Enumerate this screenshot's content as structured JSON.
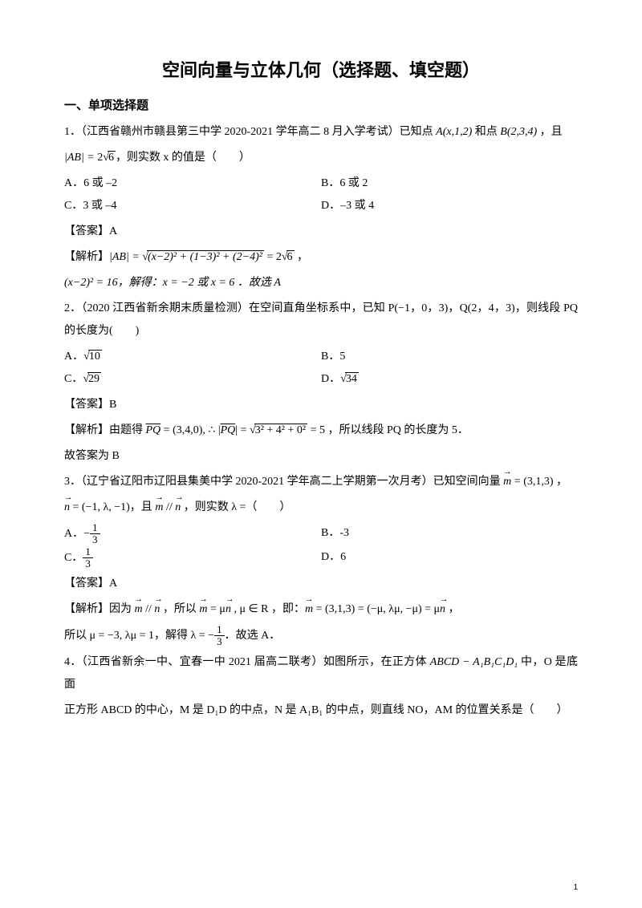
{
  "title": "空间向量与立体几何（选择题、填空题）",
  "section1": "一、单项选择题",
  "q1": {
    "stem_a": "1．（江西省赣州市赣县第三中学 2020-2021 学年高二 8 月入学考试）已知点 ",
    "stem_pointA": "A(x,1,2)",
    "stem_b": " 和点 ",
    "stem_pointB": "B(2,3,4)",
    "stem_c": " ，且",
    "stem_d_pre": "|AB| = ",
    "stem_d_rad": "6",
    "stem_d_coef": "2",
    "stem_e": "，则实数 x 的值是（　　）",
    "optA": "A．6 或 –2",
    "optB": "B．6 或 2",
    "optC": "C．3 或 –4",
    "optD": "D．–3 或 4",
    "ans": "【答案】A",
    "expl_a": "【解析】",
    "expl_b": "|AB| = ",
    "expl_rad": "(x−2)² + (1−3)² + (2−4)²",
    "expl_c": " = 2",
    "expl_rad2": "6",
    "expl_d": " ，",
    "expl_e": "(x−2)² = 16，解得：x = −2 或 x = 6 ．故选 A"
  },
  "q2": {
    "stem_a": "2．（2020 江西省新余期末质量检测）在空间直角坐标系中，已知 P(−1，0，3)，Q(2，4，3)，则线段 PQ 的长度为(　　)",
    "optA_pre": "A．",
    "optA_rad": "10",
    "optB": "B．5",
    "optC_pre": "C．",
    "optC_rad": "29",
    "optD_pre": "D．",
    "optD_rad": "34",
    "ans": "【答案】B",
    "expl_a": "【解析】由题得 ",
    "expl_pq": "PQ",
    "expl_b": " = (3,4,0), ∴ ",
    "expl_abs_l": "|",
    "expl_abs_r": "|",
    "expl_c": " = ",
    "expl_rad": "3² + 4² + 0²",
    "expl_d": " = 5 ，所以线段 PQ 的长度为 5．",
    "expl_e": "故答案为 B"
  },
  "q3": {
    "stem_a": "3．（辽宁省辽阳市辽阳县集美中学 2020-2021 学年高二上学期第一次月考）已知空间向量 ",
    "stem_m": "m",
    "stem_b": " = (3,1,3) ，",
    "stem_n": "n",
    "stem_c": " = (−1, λ, −1)，且 ",
    "stem_d": " // ",
    "stem_e": " ，则实数 λ =（　　）",
    "optA_pre": "A．",
    "optA_neg": "−",
    "optA_num": "1",
    "optA_den": "3",
    "optB": "B．-3",
    "optC_pre": "C．",
    "optC_num": "1",
    "optC_den": "3",
    "optD": "D．6",
    "ans": "【答案】A",
    "expl_a": "【解析】因为 ",
    "expl_b": " // ",
    "expl_c": " ，所以 ",
    "expl_d": " = μ",
    "expl_e": " , μ ∈ R ，即：",
    "expl_f": " = (3,1,3) = (−μ, λμ, −μ) = μ",
    "expl_g": " ，",
    "expl_h_a": "所以 μ = −3, λμ = 1，解得 λ = ",
    "expl_h_neg": "−",
    "expl_h_num": "1",
    "expl_h_den": "3",
    "expl_h_b": "．故选 A．"
  },
  "q4": {
    "stem_a": "4．（江西省新余一中、宜春一中 2021 届高二联考）如图所示，在正方体 ",
    "stem_cube": "ABCD − A₁B₁C₁D₁",
    "stem_b": " 中，O 是底面",
    "stem_c": "正方形 ABCD 的中心，M 是 D₁D 的中点，N 是 A₁B₁ 的中点，则直线 NO，AM 的位置关系是（　　）"
  },
  "pagenum": "1"
}
